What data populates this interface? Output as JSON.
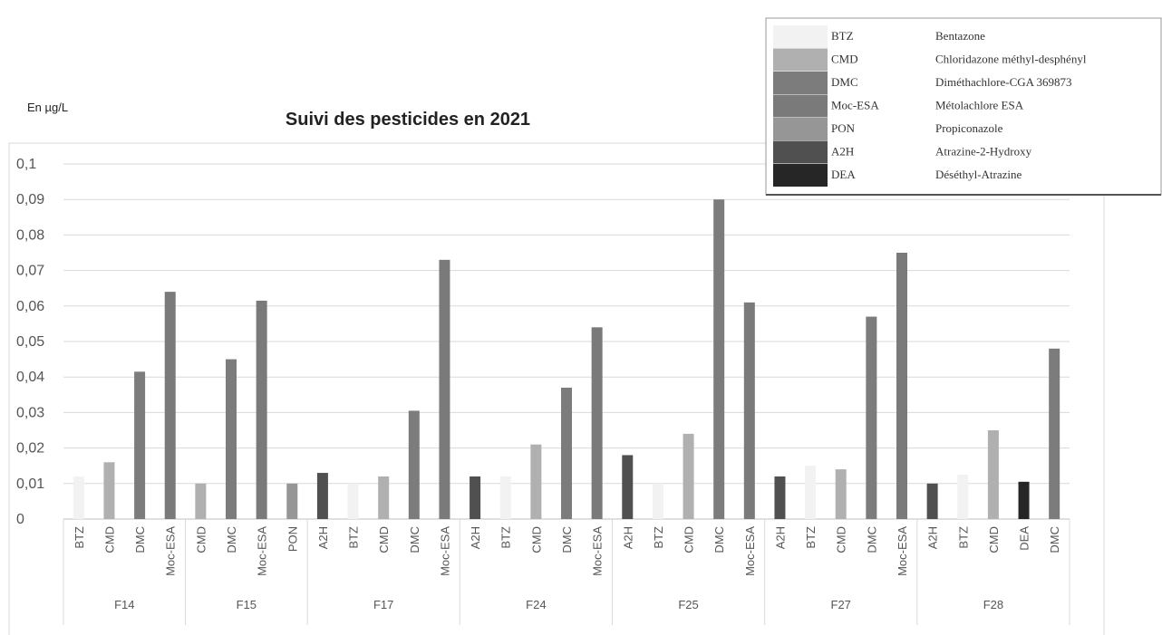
{
  "chart_data": {
    "type": "bar",
    "title": "Suivi des pesticides en 2021",
    "y_label": "En µg/L",
    "ylim": [
      0,
      0.1
    ],
    "yticks": [
      0,
      {
        "value": 0.01,
        "label": "0,01"
      },
      {
        "value": 0.02,
        "label": "0,02"
      },
      {
        "value": 0.03,
        "label": "0,03"
      },
      {
        "value": 0.04,
        "label": "0,04"
      },
      {
        "value": 0.05,
        "label": "0,05"
      },
      {
        "value": 0.06,
        "label": "0,06"
      },
      {
        "value": 0.07,
        "label": "0,07"
      },
      {
        "value": 0.08,
        "label": "0,08"
      },
      {
        "value": 0.09,
        "label": "0,09"
      },
      {
        "value": 0.1,
        "label": "0,1"
      }
    ],
    "grid": true,
    "legend_position": "top-right",
    "series": [
      {
        "name": "BTZ",
        "label": "Bentazone",
        "color": "#f2f2f2"
      },
      {
        "name": "CMD",
        "label": "Chloridazone méthyl-desphényl",
        "color": "#b0b0b0"
      },
      {
        "name": "DMC",
        "label": "Diméthachlore-CGA 369873",
        "color": "#7c7c7c"
      },
      {
        "name": "Moc-ESA",
        "label": "Métolachlore ESA",
        "color": "#7a7a7a"
      },
      {
        "name": "PON",
        "label": "Propiconazole",
        "color": "#969696"
      },
      {
        "name": "A2H",
        "label": "Atrazine-2-Hydroxy",
        "color": "#505050"
      },
      {
        "name": "DEA",
        "label": "Déséthyl-Atrazine",
        "color": "#262626"
      }
    ],
    "groups": [
      {
        "name": "F14",
        "categories": [
          "BTZ",
          "CMD",
          "DMC",
          "Moc-ESA"
        ],
        "values": [
          0.012,
          0.016,
          0.0415,
          0.064
        ]
      },
      {
        "name": "F15",
        "categories": [
          "CMD",
          "DMC",
          "Moc-ESA",
          "PON"
        ],
        "values": [
          0.01,
          0.045,
          0.0615,
          0.01
        ]
      },
      {
        "name": "F17",
        "categories": [
          "A2H",
          "BTZ",
          "CMD",
          "DMC",
          "Moc-ESA"
        ],
        "values": [
          0.013,
          0.01,
          0.012,
          0.0305,
          0.073
        ]
      },
      {
        "name": "F24",
        "categories": [
          "A2H",
          "BTZ",
          "CMD",
          "DMC",
          "Moc-ESA"
        ],
        "values": [
          0.012,
          0.012,
          0.021,
          0.037,
          0.054
        ]
      },
      {
        "name": "F25",
        "categories": [
          "A2H",
          "BTZ",
          "CMD",
          "DMC",
          "Moc-ESA"
        ],
        "values": [
          0.018,
          0.01,
          0.024,
          0.09,
          0.061
        ]
      },
      {
        "name": "F27",
        "categories": [
          "A2H",
          "BTZ",
          "CMD",
          "DMC",
          "Moc-ESA"
        ],
        "values": [
          0.012,
          0.015,
          0.014,
          0.057,
          0.075
        ]
      },
      {
        "name": "F28",
        "categories": [
          "A2H",
          "BTZ",
          "CMD",
          "DEA",
          "DMC"
        ],
        "values": [
          0.01,
          0.0125,
          0.025,
          0.0105,
          0.048
        ]
      }
    ]
  }
}
